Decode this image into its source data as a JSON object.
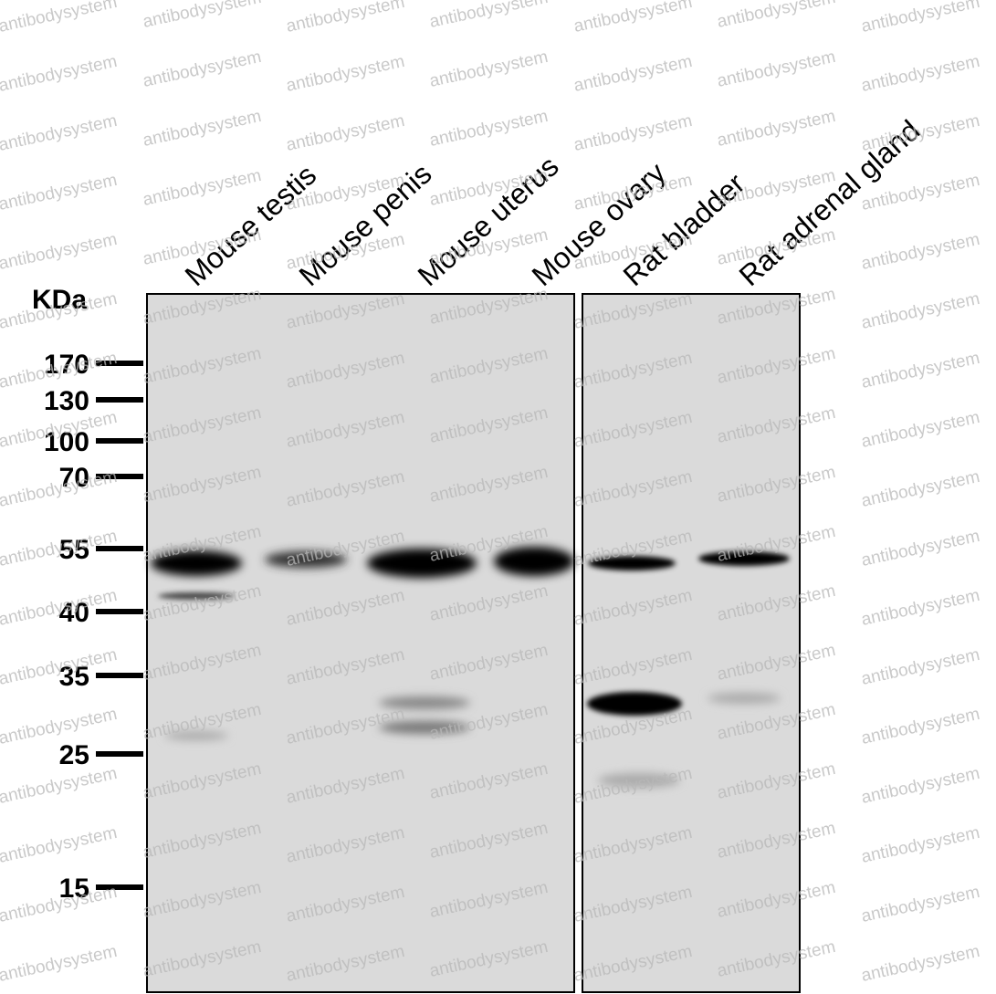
{
  "unit_label": "KDa",
  "markers": [
    170,
    130,
    100,
    70,
    55,
    40,
    35,
    25,
    15
  ],
  "lanes": [
    "Mouse testis",
    "Mouse penis",
    "Mouse uterus",
    "Mouse ovary",
    "Rat bladder",
    "Rat adrenal gland"
  ],
  "watermark": "antibodysystem"
}
